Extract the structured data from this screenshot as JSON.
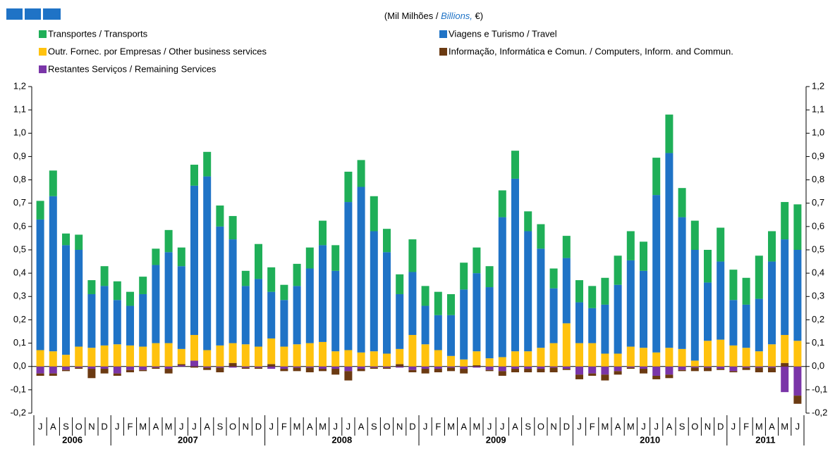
{
  "chart_data": {
    "type": "stacked-bar",
    "subtitle_parts": [
      "(Mil Milhões / ",
      "Billions,",
      " €)"
    ],
    "categories": [
      "J",
      "A",
      "S",
      "O",
      "N",
      "D",
      "J",
      "F",
      "M",
      "A",
      "M",
      "J",
      "J",
      "A",
      "S",
      "O",
      "N",
      "D",
      "J",
      "F",
      "M",
      "A",
      "M",
      "J",
      "J",
      "A",
      "S",
      "O",
      "N",
      "D",
      "J",
      "F",
      "M",
      "A",
      "M",
      "J",
      "J",
      "A",
      "S",
      "O",
      "N",
      "D",
      "J",
      "F",
      "M",
      "A",
      "M",
      "J",
      "J",
      "A",
      "S",
      "O",
      "N",
      "D",
      "J",
      "F",
      "M",
      "A",
      "M",
      "J"
    ],
    "years": [
      "2006",
      "2007",
      "2008",
      "2009",
      "2010",
      "2011"
    ],
    "series": [
      {
        "name": "Transportes / Transports",
        "color": "#1faf58",
        "values": [
          0.08,
          0.11,
          0.05,
          0.065,
          0.06,
          0.085,
          0.08,
          0.06,
          0.075,
          0.07,
          0.095,
          0.08,
          0.09,
          0.105,
          0.09,
          0.1,
          0.065,
          0.15,
          0.105,
          0.065,
          0.095,
          0.09,
          0.105,
          0.11,
          0.13,
          0.115,
          0.15,
          0.1,
          0.085,
          0.14,
          0.085,
          0.1,
          0.09,
          0.115,
          0.11,
          0.09,
          0.115,
          0.12,
          0.085,
          0.105,
          0.085,
          0.095,
          0.095,
          0.095,
          0.115,
          0.125,
          0.125,
          0.125,
          0.16,
          0.165,
          0.125,
          0.125,
          0.14,
          0.145,
          0.13,
          0.115,
          0.185,
          0.13,
          0.16,
          0.195
        ]
      },
      {
        "name": "Viagens e Turismo / Travel",
        "color": "#1f73c6",
        "values": [
          0.56,
          0.665,
          0.47,
          0.415,
          0.23,
          0.255,
          0.19,
          0.17,
          0.225,
          0.335,
          0.39,
          0.355,
          0.64,
          0.745,
          0.51,
          0.445,
          0.25,
          0.29,
          0.2,
          0.2,
          0.25,
          0.32,
          0.415,
          0.345,
          0.635,
          0.71,
          0.515,
          0.435,
          0.235,
          0.27,
          0.165,
          0.15,
          0.175,
          0.3,
          0.335,
          0.305,
          0.6,
          0.74,
          0.515,
          0.425,
          0.235,
          0.28,
          0.175,
          0.15,
          0.21,
          0.295,
          0.37,
          0.33,
          0.675,
          0.835,
          0.565,
          0.475,
          0.25,
          0.335,
          0.195,
          0.185,
          0.225,
          0.355,
          0.41,
          0.39
        ]
      },
      {
        "name": "Outr. Fornec. por Empresas  / Other business services",
        "color": "#ffc20e",
        "values": [
          0.07,
          0.065,
          0.05,
          0.085,
          0.08,
          0.09,
          0.095,
          0.09,
          0.085,
          0.1,
          0.1,
          0.065,
          0.11,
          0.07,
          0.09,
          0.085,
          0.095,
          0.085,
          0.11,
          0.085,
          0.095,
          0.1,
          0.105,
          0.065,
          0.07,
          0.06,
          0.065,
          0.055,
          0.065,
          0.135,
          0.095,
          0.07,
          0.045,
          0.03,
          0.06,
          0.035,
          0.04,
          0.065,
          0.065,
          0.08,
          0.1,
          0.185,
          0.1,
          0.1,
          0.055,
          0.055,
          0.085,
          0.08,
          0.06,
          0.08,
          0.075,
          0.025,
          0.11,
          0.115,
          0.09,
          0.08,
          0.065,
          0.095,
          0.12,
          0.11
        ]
      },
      {
        "name": "Informação, Informática e Comun. / Computers, Inform. and Commun.",
        "color": "#6b3a12",
        "values": [
          -0.01,
          -0.01,
          -0.005,
          -0.005,
          -0.04,
          -0.02,
          -0.01,
          -0.01,
          -0.005,
          -0.005,
          -0.02,
          0.005,
          -0.005,
          -0.01,
          -0.02,
          0.015,
          -0.005,
          -0.005,
          0.01,
          -0.01,
          -0.015,
          -0.02,
          -0.01,
          -0.025,
          -0.04,
          -0.01,
          -0.005,
          -0.005,
          0.01,
          -0.01,
          -0.02,
          -0.015,
          -0.015,
          -0.02,
          0.005,
          -0.005,
          -0.02,
          -0.015,
          -0.015,
          -0.015,
          -0.02,
          -0.005,
          -0.02,
          -0.01,
          -0.025,
          -0.015,
          -0.005,
          -0.02,
          -0.015,
          -0.015,
          -0.005,
          -0.015,
          -0.015,
          -0.005,
          -0.005,
          -0.01,
          -0.02,
          -0.02,
          0.015,
          -0.035
        ]
      },
      {
        "name": "Restantes Serviços / Remaining Services",
        "color": "#7a35a8",
        "values": [
          -0.03,
          -0.03,
          -0.015,
          -0.005,
          -0.01,
          -0.01,
          -0.03,
          -0.015,
          -0.015,
          -0.005,
          -0.01,
          0.005,
          0.025,
          -0.005,
          -0.005,
          -0.005,
          -0.005,
          -0.005,
          -0.01,
          -0.01,
          -0.005,
          -0.005,
          -0.01,
          -0.01,
          -0.02,
          -0.01,
          -0.005,
          -0.005,
          -0.005,
          -0.015,
          -0.01,
          -0.01,
          -0.005,
          -0.01,
          -0.005,
          -0.015,
          -0.02,
          -0.01,
          -0.01,
          -0.01,
          -0.005,
          -0.01,
          -0.035,
          -0.03,
          -0.035,
          -0.02,
          -0.005,
          -0.01,
          -0.04,
          -0.035,
          -0.015,
          -0.005,
          -0.005,
          -0.01,
          -0.02,
          -0.005,
          -0.005,
          -0.005,
          -0.11,
          -0.125
        ]
      }
    ],
    "ylim": [
      -0.2,
      1.2
    ],
    "yticks": [
      {
        "value": -0.2,
        "label": "-0,2"
      },
      {
        "value": -0.1,
        "label": "-0,1"
      },
      {
        "value": 0,
        "label": "0,0"
      },
      {
        "value": 0.1,
        "label": "0,1"
      },
      {
        "value": 0.2,
        "label": "0,2"
      },
      {
        "value": 0.3,
        "label": "0,3"
      },
      {
        "value": 0.4,
        "label": "0,4"
      },
      {
        "value": 0.5,
        "label": "0,5"
      },
      {
        "value": 0.6,
        "label": "0,6"
      },
      {
        "value": 0.7,
        "label": "0,7"
      },
      {
        "value": 0.8,
        "label": "0,8"
      },
      {
        "value": 0.9,
        "label": "0,9"
      },
      {
        "value": 1.0,
        "label": "1,0"
      },
      {
        "value": 1.1,
        "label": "1,1"
      },
      {
        "value": 1.2,
        "label": "1,2"
      }
    ]
  }
}
